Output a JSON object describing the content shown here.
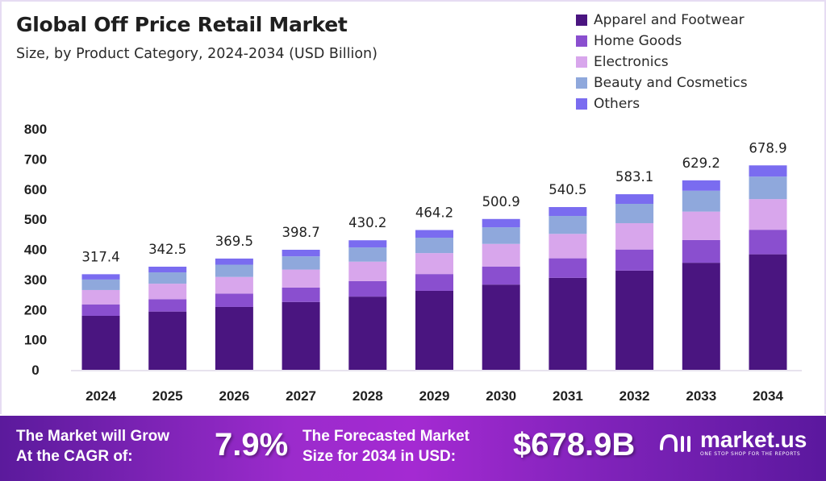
{
  "chart_data": {
    "type": "bar",
    "stacked": true,
    "title": "Global Off Price Retail Market",
    "subtitle": "Size, by Product Category, 2024-2034 (USD Billion)",
    "xlabel": "",
    "ylabel": "",
    "ylim": [
      0,
      800
    ],
    "yticks": [
      0,
      100,
      200,
      300,
      400,
      500,
      600,
      700,
      800
    ],
    "grid": false,
    "legend_position": "top-right",
    "categories": [
      "2024",
      "2025",
      "2026",
      "2027",
      "2028",
      "2029",
      "2030",
      "2031",
      "2032",
      "2033",
      "2034"
    ],
    "totals": [
      "317.4",
      "342.5",
      "369.5",
      "398.7",
      "430.2",
      "464.2",
      "500.9",
      "540.5",
      "583.1",
      "629.2",
      "678.9"
    ],
    "series": [
      {
        "name": "Apparel and Footwear",
        "color": "#4a1580",
        "values": [
          179.3,
          193.5,
          208.8,
          225.3,
          243.1,
          262.3,
          283.0,
          305.4,
          329.5,
          355.5,
          383.6
        ]
      },
      {
        "name": "Home Goods",
        "color": "#8a4fcf",
        "values": [
          38.1,
          41.1,
          44.3,
          47.8,
          51.6,
          55.7,
          60.1,
          64.9,
          70.0,
          75.5,
          81.5
        ]
      },
      {
        "name": "Electronics",
        "color": "#d8a6ec",
        "values": [
          47.6,
          51.4,
          55.4,
          59.8,
          64.5,
          69.6,
          75.1,
          81.1,
          87.5,
          94.4,
          101.8
        ]
      },
      {
        "name": "Beauty and Cosmetics",
        "color": "#8fa8dc",
        "values": [
          34.9,
          37.7,
          40.6,
          43.9,
          47.3,
          51.1,
          55.1,
          59.5,
          64.1,
          69.2,
          74.7
        ]
      },
      {
        "name": "Others",
        "color": "#7a6cf0",
        "values": [
          17.5,
          18.8,
          20.4,
          21.9,
          23.7,
          25.5,
          27.6,
          29.6,
          32.0,
          34.6,
          37.3
        ]
      }
    ]
  },
  "banner": {
    "cagr_label_line1": "The Market will Grow",
    "cagr_label_line2": "At the CAGR of:",
    "cagr_value": "7.9%",
    "forecast_label_line1": "The Forecasted Market",
    "forecast_label_line2": "Size for 2034 in USD:",
    "forecast_value": "$678.9B",
    "logo_name": "market.us",
    "logo_tagline": "ONE STOP SHOP FOR THE REPORTS"
  }
}
